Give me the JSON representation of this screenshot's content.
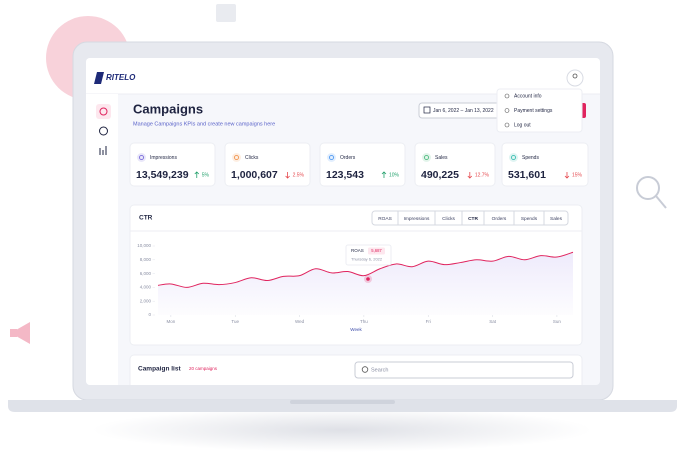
{
  "brand": "RITELO",
  "header": {
    "title": "Campaigns",
    "subtitle": "Manage Campaigns KPIs and create new campaigns here",
    "date_range": "Jan 6, 2022 – Jan 13, 2022"
  },
  "user_menu": [
    "Account info",
    "Payment settings",
    "Log out"
  ],
  "kpis": [
    {
      "label": "Impressions",
      "value": "13,549,239",
      "change": "5%",
      "trend": "up",
      "color": "#6b5bd6"
    },
    {
      "label": "Clicks",
      "value": "1,000,607",
      "change": "2.5%",
      "trend": "down",
      "color": "#f08a3c"
    },
    {
      "label": "Orders",
      "value": "123,543",
      "change": "10%",
      "trend": "up",
      "color": "#3c8ef0"
    },
    {
      "label": "Sales",
      "value": "490,225",
      "change": "12.7%",
      "trend": "down",
      "color": "#3cb371"
    },
    {
      "label": "Spends",
      "value": "531,601",
      "change": "15%",
      "trend": "down",
      "color": "#26b7a8"
    }
  ],
  "chart_data": {
    "type": "line",
    "title": "CTR",
    "tabs": [
      "ROAS",
      "Impressions",
      "Clicks",
      "CTR",
      "Orders",
      "Spends",
      "Sales"
    ],
    "active_tab": 3,
    "x": [
      -0.2,
      0,
      0.25,
      0.5,
      0.75,
      1,
      1.25,
      1.5,
      1.75,
      2,
      2.25,
      2.5,
      2.75,
      3,
      3.25,
      3.5,
      3.75,
      4,
      4.25,
      4.5,
      4.75,
      5,
      5.25,
      5.5,
      5.75,
      6,
      6.25
    ],
    "values": [
      4300,
      4500,
      4000,
      4600,
      4400,
      4700,
      5400,
      5000,
      5600,
      5700,
      6700,
      6100,
      6300,
      5700,
      6700,
      7400,
      7000,
      7800,
      7300,
      7600,
      8000,
      7800,
      8500,
      8000,
      8600,
      8400,
      9100
    ],
    "color": "#e0245e",
    "xlim": [
      -0.2,
      6.25
    ],
    "xticks": [
      {
        "value": 0,
        "label": "Mon"
      },
      {
        "value": 1,
        "label": "Tue"
      },
      {
        "value": 2,
        "label": "Wed"
      },
      {
        "value": 3,
        "label": "Thu"
      },
      {
        "value": 4,
        "label": "Fri"
      },
      {
        "value": 5,
        "label": "Sat"
      },
      {
        "value": 6,
        "label": "Sun"
      }
    ],
    "xlabel": "Week",
    "ylim": [
      0,
      10000
    ],
    "yticks": [
      0,
      {
        "value": 2000,
        "label": "2,000"
      },
      {
        "value": 4000,
        "label": "4,000"
      },
      {
        "value": 6000,
        "label": "6,000"
      },
      {
        "value": 8000,
        "label": "8,000"
      },
      {
        "value": 10000,
        "label": "10,000"
      }
    ],
    "grid": false,
    "tooltip": {
      "label": "ROAS",
      "value": "5,687",
      "date": "Thursday 6, 2022"
    }
  },
  "campaign_list": {
    "title": "Campaign list",
    "count": "20 campaigns",
    "search_placeholder": "Search"
  }
}
